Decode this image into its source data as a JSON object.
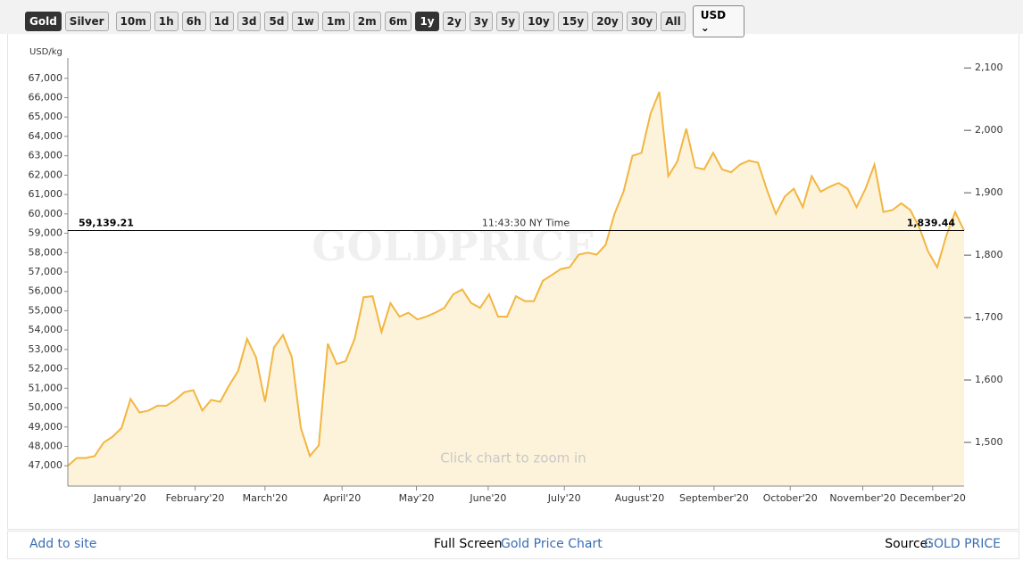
{
  "toolbar": {
    "metals": [
      "Gold",
      "Silver"
    ],
    "active_metal": "Gold",
    "ranges": [
      "10m",
      "1h",
      "6h",
      "1d",
      "3d",
      "5d",
      "1w",
      "1m",
      "2m",
      "6m",
      "1y",
      "2y",
      "3y",
      "5y",
      "10y",
      "15y",
      "20y",
      "30y",
      "All"
    ],
    "active_range": "1y",
    "currency": "USD"
  },
  "chart_data": {
    "type": "line",
    "y_label": "USD/kg",
    "watermark": "GOLDPRICE.ORG",
    "hint": "Click chart to zoom in",
    "color": "#f2b641",
    "fill": "#fdf3da",
    "values": [
      47000,
      47400,
      47400,
      47500,
      48200,
      48500,
      48950,
      50450,
      49750,
      49850,
      50100,
      50100,
      50400,
      50800,
      50900,
      49850,
      50400,
      50300,
      51150,
      51900,
      53550,
      52600,
      50300,
      53100,
      53750,
      52600,
      48950,
      47500,
      48050,
      53300,
      52250,
      52400,
      53550,
      55700,
      55750,
      53900,
      55400,
      54700,
      54900,
      54550,
      54700,
      54900,
      55150,
      55850,
      56100,
      55400,
      55150,
      55850,
      54700,
      54700,
      55750,
      55500,
      55500,
      56550,
      56850,
      57150,
      57250,
      57900,
      58000,
      57900,
      58400,
      60000,
      61150,
      63000,
      63150,
      65150,
      66300,
      61950,
      62700,
      64400,
      62400,
      62300,
      63150,
      62300,
      62150,
      62550,
      62750,
      62650,
      61250,
      60000,
      60900,
      61300,
      60350,
      61950,
      61150,
      61400,
      61600,
      61300,
      60350,
      61300,
      62550,
      60100,
      60200,
      60550,
      60200,
      59300,
      58050,
      57250,
      58850,
      60100,
      59139
    ],
    "xlim": [
      0,
      100
    ],
    "xticks": [
      {
        "value": 5.8,
        "label": "January'20"
      },
      {
        "value": 14.2,
        "label": "February'20"
      },
      {
        "value": 22,
        "label": "March'20"
      },
      {
        "value": 30.6,
        "label": "April'20"
      },
      {
        "value": 38.9,
        "label": "May'20"
      },
      {
        "value": 46.9,
        "label": "June'20"
      },
      {
        "value": 55.4,
        "label": "July'20"
      },
      {
        "value": 63.8,
        "label": "August'20"
      },
      {
        "value": 72.1,
        "label": "September'20"
      },
      {
        "value": 80.6,
        "label": "October'20"
      },
      {
        "value": 88.7,
        "label": "November'20"
      },
      {
        "value": 96.5,
        "label": "December'20"
      }
    ],
    "ylim": [
      45950,
      68050
    ],
    "yticks": [
      {
        "value": 47000,
        "label": "47,000"
      },
      {
        "value": 48000,
        "label": "48,000"
      },
      {
        "value": 49000,
        "label": "49,000"
      },
      {
        "value": 50000,
        "label": "50,000"
      },
      {
        "value": 51000,
        "label": "51,000"
      },
      {
        "value": 52000,
        "label": "52,000"
      },
      {
        "value": 53000,
        "label": "53,000"
      },
      {
        "value": 54000,
        "label": "54,000"
      },
      {
        "value": 55000,
        "label": "55,000"
      },
      {
        "value": 56000,
        "label": "56,000"
      },
      {
        "value": 57000,
        "label": "57,000"
      },
      {
        "value": 58000,
        "label": "58,000"
      },
      {
        "value": 59000,
        "label": "59,000"
      },
      {
        "value": 60000,
        "label": "60,000"
      },
      {
        "value": 61000,
        "label": "61,000"
      },
      {
        "value": 62000,
        "label": "62,000"
      },
      {
        "value": 63000,
        "label": "63,000"
      },
      {
        "value": 64000,
        "label": "64,000"
      },
      {
        "value": 65000,
        "label": "65,000"
      },
      {
        "value": 66000,
        "label": "66,000"
      },
      {
        "value": 67000,
        "label": "67,000"
      }
    ],
    "y2lim": [
      1430,
      2116
    ],
    "y2ticks": [
      {
        "value": 1500,
        "label": "1,500"
      },
      {
        "value": 1600,
        "label": "1,600"
      },
      {
        "value": 1700,
        "label": "1,700"
      },
      {
        "value": 1800,
        "label": "1,800"
      },
      {
        "value": 1900,
        "label": "1,900"
      },
      {
        "value": 2000,
        "label": "2,000"
      },
      {
        "value": 2100,
        "label": "2,100"
      }
    ],
    "price_line": {
      "value": 59139.21,
      "label": "59,139.21",
      "value_y2": 1839.44,
      "label_y2": "1,839.44",
      "time": "11:43:30 NY Time"
    }
  },
  "footer": {
    "left": "Add to site",
    "center_prefix": "Full Screen",
    "center_link": "Gold Price Chart",
    "right_prefix": "Source:",
    "right_link": "GOLD PRICE"
  }
}
